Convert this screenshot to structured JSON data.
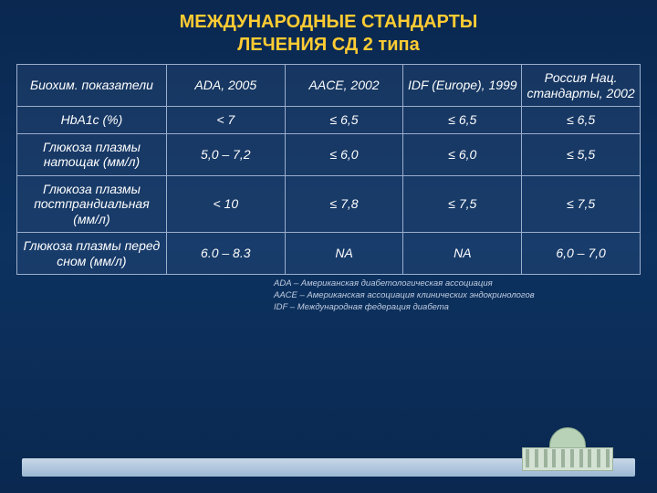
{
  "title_line1": "МЕЖДУНАРОДНЫЕ СТАНДАРТЫ",
  "title_line2": "ЛЕЧЕНИЯ СД 2 типа",
  "table": {
    "type": "table",
    "columns": [
      "Биохим. показатели",
      "ADA, 2005",
      "AACE, 2002",
      "IDF (Europe), 1999",
      "Россия Нац. стандарты, 2002"
    ],
    "rows": [
      [
        "HbA1c (%)",
        "< 7",
        "≤ 6,5",
        "≤ 6,5",
        "≤ 6,5"
      ],
      [
        "Глюкоза плазмы натощак (мм/л)",
        "5,0 – 7,2",
        "≤ 6,0",
        "≤ 6,0",
        "≤ 5,5"
      ],
      [
        "Глюкоза плазмы постпрандиальная (мм/л)",
        "< 10",
        "≤ 7,8",
        "≤ 7,5",
        "≤ 7,5"
      ],
      [
        "Глюкоза плазмы перед сном (мм/л)",
        "6.0 – 8.3",
        "NA",
        "NA",
        "6,0 – 7,0"
      ]
    ],
    "header_font_size": 14,
    "cell_font_size": 14,
    "font_style": "italic",
    "text_color": "#ffffff",
    "border_color": "#9baecc",
    "cell_bg": "rgba(60,90,140,0.25)",
    "col_widths_pct": [
      24,
      19,
      19,
      19,
      19
    ]
  },
  "footnotes": [
    "ADA – Американская диабетологическая ассоциация",
    "AACE – Американская ассоциация клинических эндокринологов",
    "IDF – Международная федерация диабета"
  ],
  "colors": {
    "title": "#ffcc33",
    "background_top": "#0a2850",
    "background_mid": "#0d3260",
    "footnote_text": "#c0cce0",
    "bar_gradient_top": "#c7d7e8",
    "bar_gradient_bottom": "#9db8d4"
  }
}
